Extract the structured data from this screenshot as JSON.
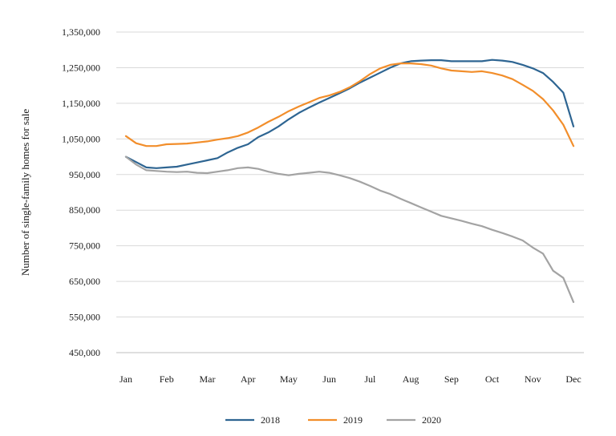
{
  "chart_data": {
    "type": "line",
    "title": "",
    "ylabel": "Number of single-family homes for sale",
    "xlabel": "",
    "ylim": [
      450000,
      1350000
    ],
    "yticks": [
      450000,
      550000,
      650000,
      750000,
      850000,
      950000,
      1050000,
      1150000,
      1250000,
      1350000
    ],
    "ytick_labels": [
      "450,000",
      "550,000",
      "650,000",
      "750,000",
      "850,000",
      "950,000",
      "1,050,000",
      "1,150,000",
      "1,250,000",
      "1,350,000"
    ],
    "grid": true,
    "legend_position": "bottom",
    "x_categories": [
      "Jan",
      "Feb",
      "Mar",
      "Apr",
      "May",
      "Jun",
      "Jul",
      "Aug",
      "Sep",
      "Oct",
      "Nov",
      "Dec"
    ],
    "x_range": [
      0,
      11
    ],
    "series": [
      {
        "name": "2018",
        "color": "#2e6592",
        "x": [
          0,
          0.25,
          0.5,
          0.75,
          1,
          1.25,
          1.5,
          1.75,
          2,
          2.25,
          2.5,
          2.75,
          3,
          3.25,
          3.5,
          3.75,
          4,
          4.25,
          4.5,
          4.75,
          5,
          5.25,
          5.5,
          5.75,
          6,
          6.25,
          6.5,
          6.75,
          7,
          7.25,
          7.5,
          7.75,
          8,
          8.25,
          8.5,
          8.75,
          9,
          9.25,
          9.5,
          9.75,
          10,
          10.25,
          10.5,
          10.75,
          11
        ],
        "values": [
          1000000,
          985000,
          970000,
          968000,
          970000,
          972000,
          978000,
          984000,
          990000,
          996000,
          1012000,
          1025000,
          1035000,
          1055000,
          1068000,
          1085000,
          1105000,
          1123000,
          1138000,
          1152000,
          1165000,
          1178000,
          1192000,
          1208000,
          1222000,
          1236000,
          1250000,
          1262000,
          1268000,
          1270000,
          1271000,
          1271000,
          1268000,
          1268000,
          1268000,
          1268000,
          1272000,
          1270000,
          1266000,
          1258000,
          1248000,
          1235000,
          1210000,
          1180000,
          1085000
        ]
      },
      {
        "name": "2019",
        "color": "#f28e2b",
        "x": [
          0,
          0.25,
          0.5,
          0.75,
          1,
          1.25,
          1.5,
          1.75,
          2,
          2.25,
          2.5,
          2.75,
          3,
          3.25,
          3.5,
          3.75,
          4,
          4.25,
          4.5,
          4.75,
          5,
          5.25,
          5.5,
          5.75,
          6,
          6.25,
          6.5,
          6.75,
          7,
          7.25,
          7.5,
          7.75,
          8,
          8.25,
          8.5,
          8.75,
          9,
          9.25,
          9.5,
          9.75,
          10,
          10.25,
          10.5,
          10.75,
          11
        ],
        "values": [
          1058000,
          1038000,
          1030000,
          1030000,
          1035000,
          1036000,
          1037000,
          1040000,
          1043000,
          1048000,
          1052000,
          1058000,
          1068000,
          1082000,
          1098000,
          1112000,
          1128000,
          1141000,
          1153000,
          1165000,
          1172000,
          1182000,
          1195000,
          1212000,
          1232000,
          1248000,
          1258000,
          1262000,
          1262000,
          1260000,
          1256000,
          1248000,
          1242000,
          1240000,
          1238000,
          1240000,
          1235000,
          1228000,
          1218000,
          1202000,
          1185000,
          1162000,
          1130000,
          1090000,
          1030000
        ]
      },
      {
        "name": "2020",
        "color": "#a3a3a3",
        "x": [
          0,
          0.25,
          0.5,
          0.75,
          1,
          1.25,
          1.5,
          1.75,
          2,
          2.25,
          2.5,
          2.75,
          3,
          3.25,
          3.5,
          3.75,
          4,
          4.25,
          4.5,
          4.75,
          5,
          5.25,
          5.5,
          5.75,
          6,
          6.25,
          6.5,
          6.75,
          7,
          7.25,
          7.5,
          7.75,
          8,
          8.25,
          8.5,
          8.75,
          9,
          9.25,
          9.5,
          9.75,
          10,
          10.25,
          10.5,
          10.75,
          11
        ],
        "values": [
          1000000,
          978000,
          962000,
          960000,
          958000,
          957000,
          958000,
          955000,
          954000,
          958000,
          962000,
          968000,
          970000,
          966000,
          958000,
          952000,
          948000,
          952000,
          955000,
          958000,
          955000,
          948000,
          940000,
          930000,
          918000,
          905000,
          895000,
          882000,
          870000,
          858000,
          846000,
          834000,
          827000,
          820000,
          812000,
          805000,
          795000,
          786000,
          776000,
          765000,
          745000,
          728000,
          680000,
          660000,
          592000
        ]
      }
    ]
  }
}
